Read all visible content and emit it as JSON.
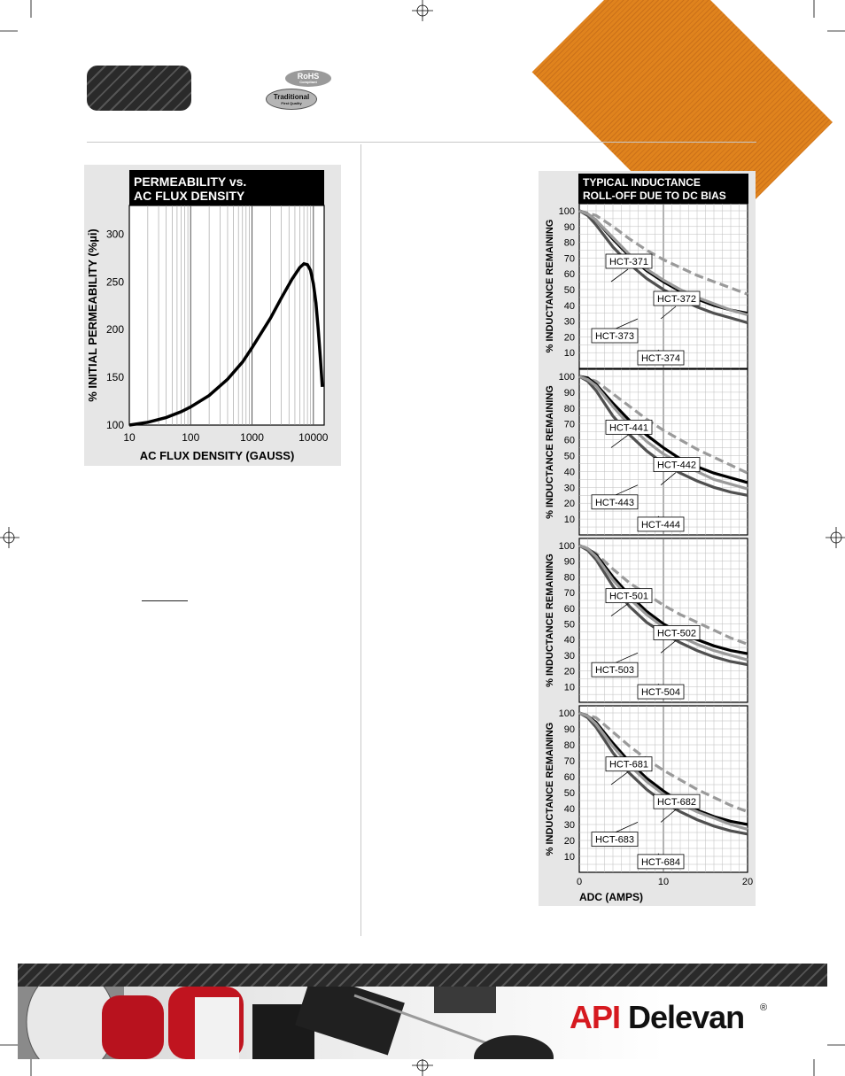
{
  "badges": {
    "rohs": "RoHS",
    "rohs_sub": "Compliant",
    "traditional": "Traditional",
    "traditional_sub": "First Quality"
  },
  "brand": {
    "api": "API",
    "name": "Delevan",
    "reg": "®"
  },
  "colors": {
    "orange": "#e0831d",
    "chart_bg": "#e6e6e6",
    "header_black": "#000000",
    "series_black": "#000000",
    "series_dark_gray": "#505050",
    "series_light_gray": "#9a9a9a",
    "series_dashed_gray": "#9a9a9a"
  },
  "chart_data": [
    {
      "type": "line",
      "title": "PERMEABILITY vs.\nAC FLUX DENSITY",
      "title_lines": [
        "PERMEABILITY vs.",
        "AC FLUX DENSITY"
      ],
      "xlabel": "AC FLUX DENSITY (GAUSS)",
      "ylabel": "% INITIAL PERMEABILITY (%µi)",
      "xscale": "log",
      "xlim": [
        10,
        15000
      ],
      "ylim": [
        100,
        330
      ],
      "xticks": [
        10,
        100,
        1000,
        10000
      ],
      "xtick_labels": [
        "10",
        "100",
        "1000",
        "10000"
      ],
      "yticks": [
        100,
        150,
        200,
        250,
        300
      ],
      "ytick_labels": [
        "100",
        "150",
        "200",
        "250",
        "300"
      ],
      "grid": "vertical log grid",
      "series": [
        {
          "x": [
            10,
            20,
            40,
            70,
            100,
            200,
            400,
            700,
            1000,
            2000,
            3000,
            4500,
            6000,
            7000,
            8000,
            9000,
            10000,
            11000,
            12000,
            13000,
            14000
          ],
          "y": [
            100,
            103,
            108,
            114,
            119,
            131,
            148,
            166,
            181,
            212,
            233,
            253,
            265,
            269,
            268,
            262,
            248,
            228,
            200,
            170,
            140
          ]
        }
      ]
    },
    {
      "type": "line",
      "title": "TYPICAL INDUCTANCE\nROLL-OFF DUE TO DC BIAS",
      "title_lines": [
        "TYPICAL INDUCTANCE",
        "ROLL-OFF DUE TO DC BIAS"
      ],
      "xlabel": "ADC (AMPS)",
      "ylabel": "% INDUCTANCE REMAINING",
      "xlim": [
        0,
        20
      ],
      "ylim": [
        0,
        100
      ],
      "xticks": [
        0,
        10,
        20
      ],
      "xtick_labels": [
        "0",
        "10",
        "20"
      ],
      "yticks": [
        10,
        20,
        30,
        40,
        50,
        60,
        70,
        80,
        90,
        100
      ],
      "ytick_labels": [
        "10",
        "20",
        "30",
        "40",
        "50",
        "60",
        "70",
        "80",
        "90",
        "100"
      ],
      "grid": true,
      "panels": [
        {
          "labels": [
            "HCT-371",
            "HCT-372",
            "HCT-373",
            "HCT-374"
          ],
          "series": [
            {
              "name": "HCT-371",
              "style": "dashed-gray",
              "x": [
                0,
                2,
                4,
                6,
                8,
                10,
                12,
                14,
                16,
                18,
                20
              ],
              "y": [
                100,
                97,
                90,
                82,
                75,
                69,
                64,
                59,
                55,
                51,
                47
              ]
            },
            {
              "name": "HCT-372",
              "style": "black",
              "x": [
                0,
                1,
                2,
                4,
                6,
                8,
                10,
                12,
                14,
                16,
                18,
                20
              ],
              "y": [
                100,
                98,
                94,
                82,
                71,
                62,
                55,
                49,
                44,
                40,
                37,
                35
              ]
            },
            {
              "name": "HCT-373",
              "style": "dark-gray",
              "x": [
                0,
                1,
                2,
                4,
                6,
                8,
                10,
                12,
                14,
                16,
                18,
                20
              ],
              "y": [
                100,
                97,
                91,
                77,
                66,
                57,
                50,
                44,
                39,
                35,
                32,
                29
              ]
            },
            {
              "name": "HCT-374",
              "style": "light-gray",
              "x": [
                0,
                1,
                2,
                4,
                6,
                8,
                10,
                12,
                14,
                16,
                18,
                20
              ],
              "y": [
                100,
                98,
                94,
                83,
                72,
                63,
                56,
                50,
                45,
                41,
                37,
                34
              ]
            }
          ]
        },
        {
          "labels": [
            "HCT-441",
            "HCT-442",
            "HCT-443",
            "HCT-444"
          ],
          "series": [
            {
              "name": "HCT-441",
              "style": "dashed-gray",
              "x": [
                0,
                2,
                4,
                6,
                8,
                10,
                12,
                14,
                16,
                18,
                20
              ],
              "y": [
                100,
                97,
                89,
                81,
                73,
                66,
                60,
                54,
                49,
                44,
                39
              ]
            },
            {
              "name": "HCT-442",
              "style": "black",
              "x": [
                0,
                1,
                2,
                4,
                6,
                8,
                10,
                12,
                14,
                16,
                18,
                20
              ],
              "y": [
                100,
                99,
                95,
                83,
                72,
                63,
                55,
                48,
                43,
                39,
                36,
                33
              ]
            },
            {
              "name": "HCT-443",
              "style": "dark-gray",
              "x": [
                0,
                1,
                2,
                4,
                6,
                8,
                10,
                12,
                14,
                16,
                18,
                20
              ],
              "y": [
                100,
                97,
                91,
                75,
                63,
                53,
                45,
                39,
                34,
                30,
                27,
                25
              ]
            },
            {
              "name": "HCT-444",
              "style": "light-gray",
              "x": [
                0,
                1,
                2,
                4,
                6,
                8,
                10,
                12,
                14,
                16,
                18,
                20
              ],
              "y": [
                100,
                98,
                94,
                81,
                69,
                59,
                51,
                45,
                40,
                35,
                32,
                29
              ]
            }
          ]
        },
        {
          "labels": [
            "HCT-501",
            "HCT-502",
            "HCT-503",
            "HCT-504"
          ],
          "series": [
            {
              "name": "HCT-501",
              "style": "dashed-gray",
              "x": [
                0,
                2,
                4,
                6,
                8,
                10,
                12,
                14,
                16,
                18,
                20
              ],
              "y": [
                100,
                95,
                85,
                76,
                69,
                62,
                56,
                51,
                46,
                41,
                37
              ]
            },
            {
              "name": "HCT-502",
              "style": "black",
              "x": [
                0,
                1,
                2,
                4,
                6,
                8,
                10,
                12,
                14,
                16,
                18,
                20
              ],
              "y": [
                100,
                98,
                94,
                80,
                68,
                58,
                50,
                44,
                40,
                36,
                33,
                31
              ]
            },
            {
              "name": "HCT-503",
              "style": "dark-gray",
              "x": [
                0,
                1,
                2,
                4,
                6,
                8,
                10,
                12,
                14,
                16,
                18,
                20
              ],
              "y": [
                100,
                97,
                91,
                74,
                61,
                51,
                44,
                38,
                33,
                29,
                26,
                24
              ]
            },
            {
              "name": "HCT-504",
              "style": "light-gray",
              "x": [
                0,
                1,
                2,
                4,
                6,
                8,
                10,
                12,
                14,
                16,
                18,
                20
              ],
              "y": [
                100,
                98,
                93,
                78,
                66,
                56,
                48,
                42,
                37,
                33,
                30,
                27
              ]
            }
          ]
        },
        {
          "labels": [
            "HCT-681",
            "HCT-682",
            "HCT-683",
            "HCT-684"
          ],
          "series": [
            {
              "name": "HCT-681",
              "style": "dashed-gray",
              "x": [
                0,
                2,
                4,
                6,
                8,
                10,
                12,
                14,
                16,
                18,
                20
              ],
              "y": [
                100,
                97,
                88,
                79,
                71,
                64,
                58,
                52,
                47,
                42,
                38
              ]
            },
            {
              "name": "HCT-682",
              "style": "black",
              "x": [
                0,
                1,
                2,
                4,
                6,
                8,
                10,
                12,
                14,
                16,
                18,
                20
              ],
              "y": [
                100,
                98,
                94,
                81,
                69,
                59,
                51,
                44,
                39,
                35,
                32,
                30
              ]
            },
            {
              "name": "HCT-683",
              "style": "dark-gray",
              "x": [
                0,
                1,
                2,
                4,
                6,
                8,
                10,
                12,
                14,
                16,
                18,
                20
              ],
              "y": [
                100,
                97,
                91,
                75,
                62,
                52,
                44,
                38,
                33,
                29,
                26,
                24
              ]
            },
            {
              "name": "HCT-684",
              "style": "light-gray",
              "x": [
                0,
                1,
                2,
                4,
                6,
                8,
                10,
                12,
                14,
                16,
                18,
                20
              ],
              "y": [
                100,
                98,
                93,
                79,
                67,
                57,
                49,
                43,
                38,
                34,
                30,
                27
              ]
            }
          ]
        }
      ]
    }
  ]
}
